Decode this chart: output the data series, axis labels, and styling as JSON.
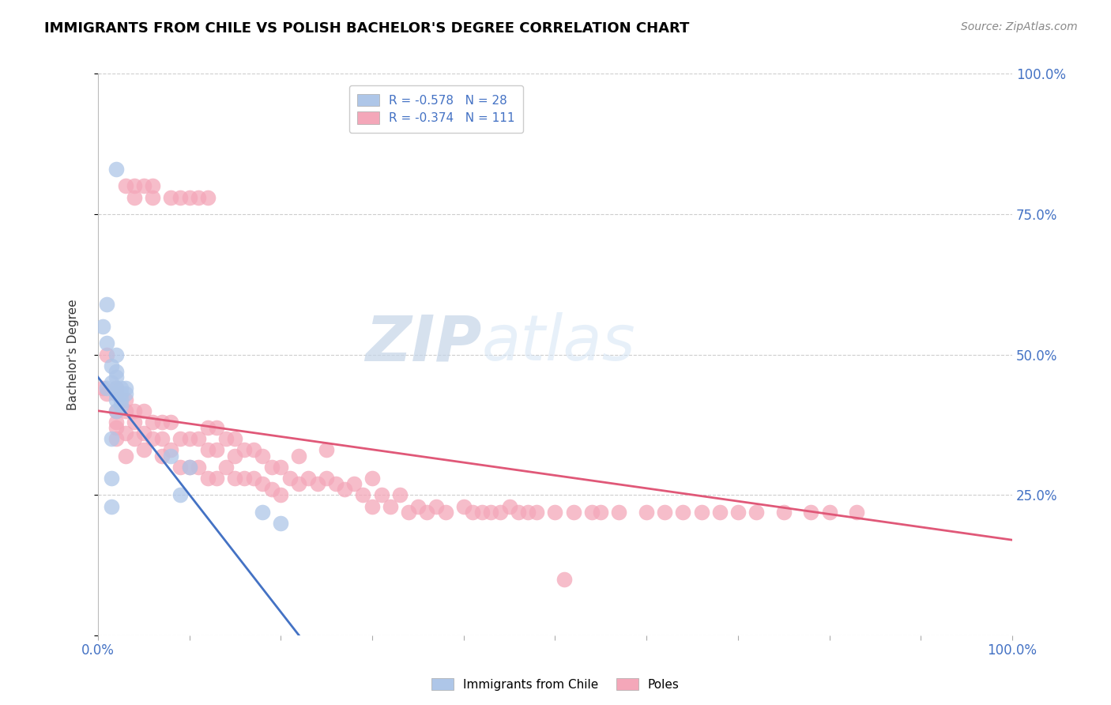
{
  "title": "IMMIGRANTS FROM CHILE VS POLISH BACHELOR'S DEGREE CORRELATION CHART",
  "source": "Source: ZipAtlas.com",
  "ylabel": "Bachelor's Degree",
  "ytick_labels": [
    "100.0%",
    "75.0%",
    "50.0%",
    "25.0%"
  ],
  "ytick_values": [
    1.0,
    0.75,
    0.5,
    0.25
  ],
  "xtick_labels": [
    "0.0%",
    "100.0%"
  ],
  "xtick_values": [
    0.0,
    1.0
  ],
  "blue_series": {
    "x": [
      0.02,
      0.01,
      0.005,
      0.01,
      0.02,
      0.015,
      0.02,
      0.02,
      0.015,
      0.01,
      0.02,
      0.025,
      0.03,
      0.025,
      0.02,
      0.03,
      0.025,
      0.02,
      0.025,
      0.02,
      0.015,
      0.015,
      0.015,
      0.08,
      0.1,
      0.09,
      0.18,
      0.2
    ],
    "y": [
      0.83,
      0.59,
      0.55,
      0.52,
      0.5,
      0.48,
      0.47,
      0.46,
      0.45,
      0.44,
      0.44,
      0.44,
      0.44,
      0.43,
      0.43,
      0.43,
      0.42,
      0.42,
      0.41,
      0.4,
      0.35,
      0.28,
      0.23,
      0.32,
      0.3,
      0.25,
      0.22,
      0.2
    ],
    "R": -0.578,
    "N": 28,
    "color": "#aec6e8",
    "line_color": "#4472c4",
    "line_x0": 0.0,
    "line_y0": 0.46,
    "line_x1": 0.22,
    "line_y1": 0.0
  },
  "pink_series": {
    "x": [
      0.005,
      0.01,
      0.01,
      0.02,
      0.02,
      0.02,
      0.02,
      0.02,
      0.02,
      0.03,
      0.03,
      0.03,
      0.03,
      0.04,
      0.04,
      0.04,
      0.05,
      0.05,
      0.05,
      0.06,
      0.06,
      0.07,
      0.07,
      0.07,
      0.08,
      0.08,
      0.09,
      0.09,
      0.1,
      0.1,
      0.11,
      0.11,
      0.12,
      0.12,
      0.12,
      0.13,
      0.13,
      0.13,
      0.14,
      0.14,
      0.15,
      0.15,
      0.15,
      0.16,
      0.16,
      0.17,
      0.17,
      0.18,
      0.18,
      0.19,
      0.19,
      0.2,
      0.2,
      0.21,
      0.22,
      0.22,
      0.23,
      0.24,
      0.25,
      0.25,
      0.26,
      0.27,
      0.28,
      0.29,
      0.3,
      0.3,
      0.31,
      0.32,
      0.33,
      0.34,
      0.35,
      0.36,
      0.37,
      0.38,
      0.4,
      0.41,
      0.42,
      0.43,
      0.44,
      0.45,
      0.46,
      0.47,
      0.48,
      0.5,
      0.52,
      0.54,
      0.55,
      0.57,
      0.6,
      0.62,
      0.64,
      0.66,
      0.68,
      0.7,
      0.72,
      0.75,
      0.78,
      0.8,
      0.83,
      0.03,
      0.04,
      0.04,
      0.05,
      0.06,
      0.06,
      0.08,
      0.09,
      0.1,
      0.11,
      0.12,
      0.51
    ],
    "y": [
      0.44,
      0.5,
      0.43,
      0.44,
      0.4,
      0.38,
      0.43,
      0.37,
      0.35,
      0.42,
      0.4,
      0.36,
      0.32,
      0.4,
      0.38,
      0.35,
      0.4,
      0.36,
      0.33,
      0.38,
      0.35,
      0.38,
      0.35,
      0.32,
      0.38,
      0.33,
      0.35,
      0.3,
      0.35,
      0.3,
      0.35,
      0.3,
      0.37,
      0.33,
      0.28,
      0.37,
      0.33,
      0.28,
      0.35,
      0.3,
      0.35,
      0.32,
      0.28,
      0.33,
      0.28,
      0.33,
      0.28,
      0.32,
      0.27,
      0.3,
      0.26,
      0.3,
      0.25,
      0.28,
      0.32,
      0.27,
      0.28,
      0.27,
      0.33,
      0.28,
      0.27,
      0.26,
      0.27,
      0.25,
      0.28,
      0.23,
      0.25,
      0.23,
      0.25,
      0.22,
      0.23,
      0.22,
      0.23,
      0.22,
      0.23,
      0.22,
      0.22,
      0.22,
      0.22,
      0.23,
      0.22,
      0.22,
      0.22,
      0.22,
      0.22,
      0.22,
      0.22,
      0.22,
      0.22,
      0.22,
      0.22,
      0.22,
      0.22,
      0.22,
      0.22,
      0.22,
      0.22,
      0.22,
      0.22,
      0.8,
      0.8,
      0.78,
      0.8,
      0.78,
      0.8,
      0.78,
      0.78,
      0.78,
      0.78,
      0.78,
      0.1
    ],
    "R": -0.374,
    "N": 111,
    "color": "#f4a7b9",
    "line_color": "#e05878",
    "line_x0": 0.0,
    "line_y0": 0.4,
    "line_x1": 1.0,
    "line_y1": 0.17
  },
  "xlim": [
    0,
    1.0
  ],
  "ylim": [
    0,
    1.0
  ],
  "background_color": "#ffffff",
  "grid_color": "#c8c8c8",
  "tick_color": "#4472c4",
  "title_color": "#000000",
  "title_fontsize": 13,
  "watermark_text": "ZIPatlas",
  "watermark_color": "#dce6f1",
  "source_text": "Source: ZipAtlas.com"
}
